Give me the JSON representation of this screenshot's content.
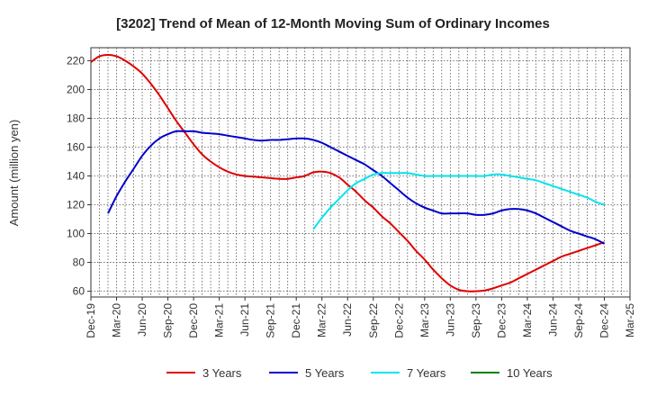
{
  "chart_data": {
    "type": "line",
    "title": "[3202]  Trend of Mean of 12-Month Moving Sum of Ordinary Incomes",
    "xlabel": "",
    "ylabel": "Amount (million yen)",
    "ylim": [
      56,
      229
    ],
    "yticks": [
      60,
      80,
      100,
      120,
      140,
      160,
      180,
      200,
      220
    ],
    "xlim": [
      0,
      63
    ],
    "xtick_labels": [
      "Dec-19",
      "Mar-20",
      "Jun-20",
      "Sep-20",
      "Dec-20",
      "Mar-21",
      "Jun-21",
      "Sep-21",
      "Dec-21",
      "Mar-22",
      "Jun-22",
      "Sep-22",
      "Dec-22",
      "Mar-23",
      "Jun-23",
      "Sep-23",
      "Dec-23",
      "Mar-24",
      "Jun-24",
      "Sep-24",
      "Dec-24",
      "Mar-25"
    ],
    "legend_position": "bottom",
    "series": [
      {
        "name": "3 Years",
        "color": "#e00000",
        "x": [
          0,
          1,
          2,
          3,
          4,
          5,
          6,
          7,
          8,
          9,
          10,
          11,
          12,
          13,
          14,
          15,
          16,
          17,
          18,
          19,
          20,
          21,
          22,
          23,
          24,
          25,
          26,
          27,
          28,
          29,
          30,
          31,
          32,
          33,
          34,
          35,
          36,
          37,
          38,
          39,
          40,
          41,
          42,
          43,
          44,
          45,
          46,
          47,
          48,
          49,
          50,
          51,
          52,
          53,
          54,
          55,
          56,
          57,
          58,
          59,
          60
        ],
        "values": [
          219,
          223,
          224,
          223,
          220,
          216,
          211,
          204,
          196,
          187,
          178,
          170,
          162,
          155,
          150,
          146,
          143,
          141,
          140,
          139.5,
          139,
          138.5,
          138,
          138,
          139,
          140,
          142.5,
          143,
          142,
          139,
          134,
          129,
          123,
          118,
          112,
          107,
          101,
          95,
          88,
          82,
          75,
          69,
          64,
          61,
          60,
          60,
          60.5,
          62,
          64,
          66,
          69,
          72,
          75,
          78,
          81,
          84,
          86,
          88,
          90,
          92,
          94
        ]
      },
      {
        "name": "5 Years",
        "color": "#0000cc",
        "x": [
          2,
          3,
          4,
          5,
          6,
          7,
          8,
          9,
          10,
          11,
          12,
          13,
          14,
          15,
          16,
          17,
          18,
          19,
          20,
          21,
          22,
          23,
          24,
          25,
          26,
          27,
          28,
          29,
          30,
          31,
          32,
          33,
          34,
          35,
          36,
          37,
          38,
          39,
          40,
          41,
          42,
          43,
          44,
          45,
          46,
          47,
          48,
          49,
          50,
          51,
          52,
          53,
          54,
          55,
          56,
          57,
          58,
          59,
          60
        ],
        "values": [
          114,
          126,
          136,
          145,
          154,
          161,
          166,
          169,
          171,
          171,
          171,
          170,
          169.5,
          169,
          168,
          167,
          166,
          165,
          164.5,
          165,
          165,
          165.5,
          166,
          166,
          165,
          163,
          160,
          157,
          154,
          151,
          148,
          144,
          140,
          135,
          130,
          125,
          121,
          118,
          116,
          114,
          114,
          114,
          114,
          113,
          113,
          114,
          116,
          117,
          117,
          116,
          114,
          111,
          108,
          105,
          102,
          100,
          98,
          96,
          93
        ]
      },
      {
        "name": "7 Years",
        "color": "#00e5ee",
        "x": [
          26,
          27,
          28,
          29,
          30,
          31,
          32,
          33,
          34,
          35,
          36,
          37,
          38,
          39,
          40,
          41,
          42,
          43,
          44,
          45,
          46,
          47,
          48,
          49,
          50,
          51,
          52,
          53,
          54,
          55,
          56,
          57,
          58,
          59,
          60
        ],
        "values": [
          103,
          111,
          118,
          124,
          130,
          135,
          138,
          141,
          142,
          142,
          142,
          142,
          141,
          140,
          140,
          140,
          140,
          140,
          140,
          140,
          140,
          141,
          141,
          140,
          139,
          138,
          137,
          135,
          133,
          131,
          129,
          127,
          125,
          122,
          120
        ]
      },
      {
        "name": "10 Years",
        "color": "#008000",
        "x": [],
        "values": []
      }
    ]
  }
}
